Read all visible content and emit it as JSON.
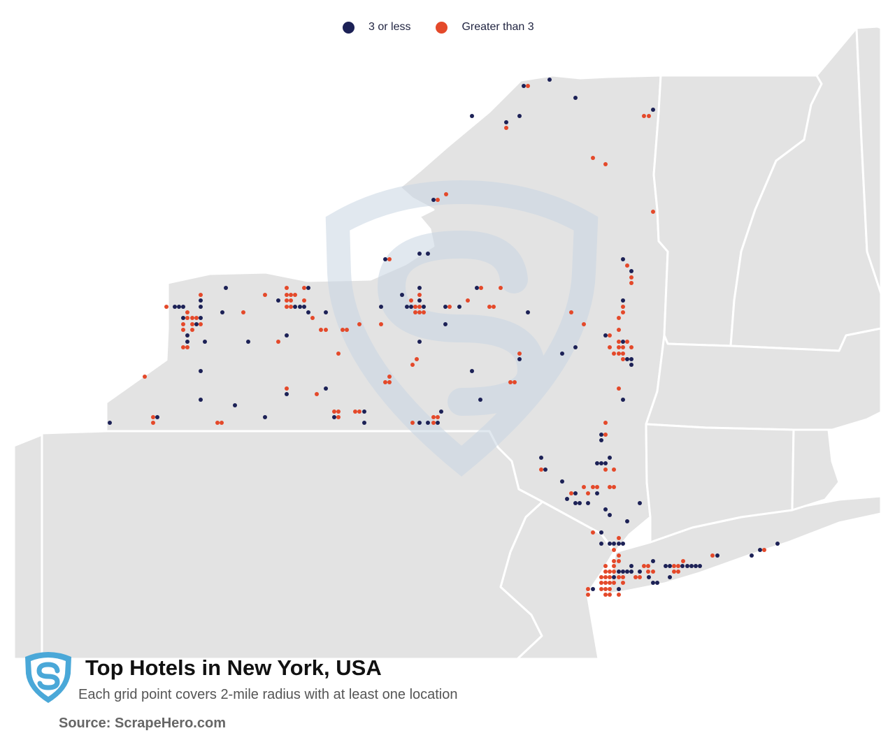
{
  "title": "Top Hotels in New York, USA",
  "subtitle": "Each grid point covers 2-mile radius with at least one location",
  "source": "Source: ScrapeHero.com",
  "legend": [
    {
      "label": "3 or less",
      "color": "#1c2156"
    },
    {
      "label": "Greater than 3",
      "color": "#e4492a"
    }
  ],
  "colors": {
    "land": "#e3e3e3",
    "border": "#ffffff",
    "watermark": "#c9d6e3",
    "logo": "#4aa8d8"
  },
  "logo": "scrapehero-shield-logo"
}
